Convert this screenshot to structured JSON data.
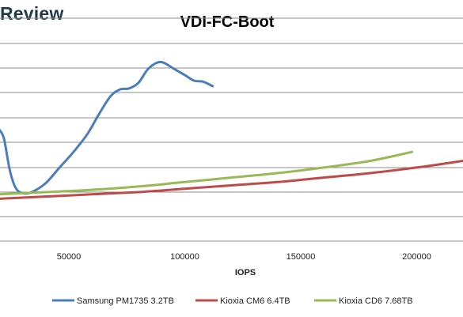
{
  "branding": {
    "logo_text": "Review"
  },
  "chart_data": {
    "type": "line",
    "title": "VDI-FC-Boot",
    "xlabel": "IOPS",
    "ylabel": "",
    "xlim": [
      20000,
      220000
    ],
    "xticks": [
      50000,
      100000,
      150000,
      200000
    ],
    "xtick_labels": [
      "50000",
      "100000",
      "150000",
      "200000"
    ],
    "ylim": [
      0,
      10
    ],
    "grid": true,
    "legend_position": "bottom",
    "series": [
      {
        "name": "Samsung PM1735 3.2TB",
        "color": "#4a7ebb",
        "points": [
          [
            20000,
            5.0
          ],
          [
            22000,
            4.6
          ],
          [
            24500,
            3.2
          ],
          [
            27000,
            2.4
          ],
          [
            30000,
            2.15
          ],
          [
            34000,
            2.2
          ],
          [
            40000,
            2.6
          ],
          [
            46000,
            3.3
          ],
          [
            52000,
            4.0
          ],
          [
            58000,
            4.8
          ],
          [
            63000,
            5.7
          ],
          [
            68000,
            6.5
          ],
          [
            72000,
            6.8
          ],
          [
            76000,
            6.85
          ],
          [
            80000,
            7.1
          ],
          [
            84000,
            7.7
          ],
          [
            88000,
            8.0
          ],
          [
            91000,
            8.0
          ],
          [
            95000,
            7.75
          ],
          [
            100000,
            7.45
          ],
          [
            104000,
            7.2
          ],
          [
            108000,
            7.15
          ],
          [
            112000,
            6.95
          ]
        ]
      },
      {
        "name": "Kioxia CM6 6.4TB",
        "color": "#be4b48",
        "points": [
          [
            20000,
            1.9
          ],
          [
            40000,
            2.0
          ],
          [
            60000,
            2.1
          ],
          [
            80000,
            2.2
          ],
          [
            100000,
            2.35
          ],
          [
            120000,
            2.5
          ],
          [
            140000,
            2.65
          ],
          [
            160000,
            2.85
          ],
          [
            180000,
            3.05
          ],
          [
            200000,
            3.3
          ],
          [
            220000,
            3.6
          ]
        ]
      },
      {
        "name": "Kioxia CD6 7.68TB",
        "color": "#98b954",
        "points": [
          [
            20000,
            2.1
          ],
          [
            40000,
            2.2
          ],
          [
            60000,
            2.3
          ],
          [
            80000,
            2.45
          ],
          [
            100000,
            2.65
          ],
          [
            120000,
            2.85
          ],
          [
            140000,
            3.05
          ],
          [
            160000,
            3.3
          ],
          [
            180000,
            3.6
          ],
          [
            198000,
            4.0
          ]
        ]
      }
    ]
  }
}
